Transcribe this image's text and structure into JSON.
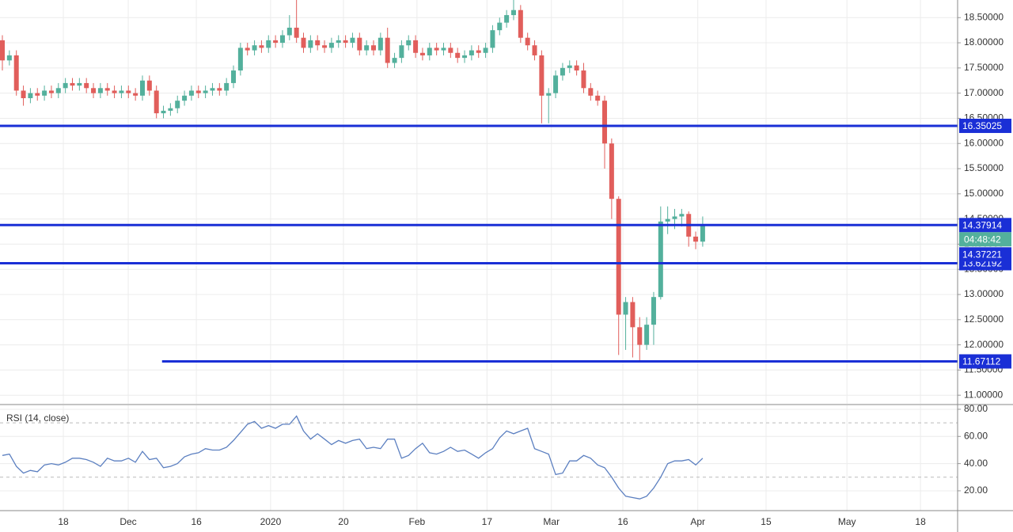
{
  "chart_data": [
    {
      "type": "candlestick",
      "up_color": "#53b09c",
      "down_color": "#e15e5b",
      "grid": true,
      "xlim": [
        -0.34,
        136.4
      ],
      "ylim": [
        10.83,
        18.85
      ],
      "yticks": [
        {
          "value": 11.0,
          "label": "11.00000"
        },
        {
          "value": 11.5,
          "label": "11.50000"
        },
        {
          "value": 12.0,
          "label": "12.00000"
        },
        {
          "value": 12.5,
          "label": "12.50000"
        },
        {
          "value": 13.0,
          "label": "13.00000"
        },
        {
          "value": 13.5,
          "label": "13.50000"
        },
        {
          "value": 14.0,
          "label": "14.00000"
        },
        {
          "value": 14.5,
          "label": "14.50000"
        },
        {
          "value": 15.0,
          "label": "15.00000"
        },
        {
          "value": 15.5,
          "label": "15.50000"
        },
        {
          "value": 16.0,
          "label": "16.00000"
        },
        {
          "value": 16.5,
          "label": "16.50000"
        },
        {
          "value": 17.0,
          "label": "17.00000"
        },
        {
          "value": 17.5,
          "label": "17.50000"
        },
        {
          "value": 18.0,
          "label": "18.00000"
        },
        {
          "value": 18.5,
          "label": "18.50000"
        }
      ],
      "open": [
        18.05,
        17.65,
        17.75,
        17.05,
        16.9,
        17.0,
        16.95,
        17.05,
        17.0,
        17.1,
        17.2,
        17.15,
        17.2,
        17.1,
        17.0,
        17.1,
        17.05,
        17.0,
        17.05,
        17.0,
        16.95,
        17.25,
        17.05,
        16.6,
        16.65,
        16.7,
        16.85,
        16.95,
        17.05,
        17.0,
        17.05,
        17.1,
        17.05,
        17.2,
        17.45,
        17.9,
        17.85,
        17.95,
        17.9,
        18.05,
        18.0,
        18.15,
        18.3,
        18.1,
        17.9,
        18.05,
        17.95,
        17.9,
        18.0,
        18.05,
        18.0,
        18.1,
        17.85,
        17.95,
        17.85,
        18.1,
        17.6,
        17.7,
        17.95,
        18.05,
        17.8,
        17.75,
        17.9,
        17.85,
        17.9,
        17.8,
        17.7,
        17.75,
        17.85,
        17.8,
        17.9,
        18.25,
        18.4,
        18.55,
        18.65,
        18.1,
        17.95,
        17.75,
        16.95,
        17.0,
        17.35,
        17.5,
        17.55,
        17.45,
        17.1,
        16.95,
        16.85,
        16.0,
        14.9,
        12.6,
        12.85,
        12.35,
        12.0,
        12.4,
        12.95,
        14.45,
        14.5,
        14.55,
        14.6,
        14.15,
        14.05
      ],
      "high": [
        18.15,
        17.85,
        17.85,
        17.15,
        17.1,
        17.1,
        17.15,
        17.15,
        17.2,
        17.3,
        17.3,
        17.3,
        17.3,
        17.2,
        17.2,
        17.2,
        17.15,
        17.15,
        17.15,
        17.1,
        17.35,
        17.35,
        17.15,
        16.75,
        16.8,
        16.95,
        17.05,
        17.15,
        17.15,
        17.15,
        17.2,
        17.2,
        17.3,
        17.55,
        18.0,
        18.0,
        18.05,
        18.05,
        18.15,
        18.15,
        18.25,
        18.55,
        18.85,
        18.2,
        18.15,
        18.15,
        18.05,
        18.1,
        18.15,
        18.15,
        18.2,
        18.2,
        18.05,
        18.05,
        18.2,
        18.3,
        17.8,
        18.05,
        18.15,
        18.15,
        17.9,
        18.0,
        18.0,
        18.0,
        18.0,
        17.9,
        17.85,
        17.95,
        17.95,
        18.0,
        18.35,
        18.5,
        18.65,
        18.85,
        18.75,
        18.2,
        18.05,
        17.85,
        17.1,
        17.45,
        17.6,
        17.65,
        17.65,
        17.6,
        17.2,
        17.05,
        16.95,
        16.1,
        14.95,
        12.95,
        12.95,
        12.55,
        12.55,
        13.05,
        14.75,
        14.75,
        14.7,
        14.7,
        14.65,
        14.25,
        14.55
      ],
      "low": [
        17.45,
        17.55,
        16.95,
        16.75,
        16.8,
        16.85,
        16.85,
        16.9,
        16.9,
        17.0,
        17.05,
        17.05,
        17.0,
        16.9,
        16.9,
        16.95,
        16.9,
        16.9,
        16.9,
        16.85,
        16.85,
        16.95,
        16.5,
        16.5,
        16.55,
        16.6,
        16.75,
        16.85,
        16.9,
        16.9,
        16.95,
        16.95,
        16.95,
        17.1,
        17.35,
        17.75,
        17.75,
        17.8,
        17.8,
        17.9,
        17.9,
        18.05,
        18.0,
        17.8,
        17.8,
        17.85,
        17.8,
        17.8,
        17.9,
        17.9,
        17.9,
        17.75,
        17.75,
        17.75,
        17.75,
        17.5,
        17.5,
        17.6,
        17.85,
        17.7,
        17.65,
        17.65,
        17.75,
        17.75,
        17.7,
        17.6,
        17.6,
        17.65,
        17.7,
        17.7,
        17.8,
        18.15,
        18.3,
        18.45,
        18.0,
        17.85,
        17.65,
        16.4,
        16.4,
        16.9,
        17.25,
        17.4,
        17.35,
        17.0,
        16.85,
        16.75,
        15.5,
        14.5,
        11.8,
        11.9,
        11.75,
        11.67,
        11.9,
        12.0,
        12.9,
        14.2,
        14.3,
        14.35,
        13.95,
        13.9,
        13.95
      ],
      "close": [
        17.65,
        17.75,
        17.05,
        16.9,
        17.0,
        16.95,
        17.05,
        17.0,
        17.1,
        17.2,
        17.15,
        17.2,
        17.1,
        17.0,
        17.1,
        17.05,
        17.0,
        17.05,
        17.0,
        16.95,
        17.25,
        17.05,
        16.6,
        16.65,
        16.7,
        16.85,
        16.95,
        17.05,
        17.0,
        17.05,
        17.1,
        17.05,
        17.2,
        17.45,
        17.9,
        17.85,
        17.95,
        17.9,
        18.05,
        18.0,
        18.15,
        18.3,
        18.1,
        17.9,
        18.05,
        17.95,
        17.9,
        18.0,
        18.05,
        18.0,
        18.1,
        17.85,
        17.95,
        17.85,
        18.1,
        17.6,
        17.7,
        17.95,
        18.05,
        17.8,
        17.75,
        17.9,
        17.85,
        17.9,
        17.8,
        17.7,
        17.75,
        17.85,
        17.8,
        17.9,
        18.25,
        18.4,
        18.55,
        18.65,
        18.1,
        17.95,
        17.75,
        16.95,
        17.0,
        17.35,
        17.5,
        17.55,
        17.45,
        17.1,
        16.95,
        16.85,
        16.0,
        14.9,
        12.6,
        12.85,
        12.35,
        12.0,
        12.4,
        12.95,
        14.45,
        14.5,
        14.55,
        14.6,
        14.15,
        14.05,
        14.38
      ],
      "levels": [
        {
          "value": 16.35025,
          "color": "#1a2fd6"
        },
        {
          "value": 14.37914,
          "color": "#1a2fd6"
        },
        {
          "value": 13.62192,
          "color": "#1a2fd6"
        },
        {
          "value": 11.67112,
          "color": "#1a2fd6",
          "x_start": 22.8
        }
      ],
      "countdown": "04:48:42",
      "countdown_color": "#53b09c",
      "last_price": 14.37221,
      "last_price_color": "#1a2fd6"
    },
    {
      "type": "line",
      "title": "RSI (14, close)",
      "color": "#5b7fc0",
      "xlim": [
        -0.34,
        136.4
      ],
      "ylim": [
        5.4,
        82.9
      ],
      "yticks": [
        {
          "value": 20,
          "label": "20.00"
        },
        {
          "value": 40,
          "label": "40.00"
        },
        {
          "value": 60,
          "label": "60.00"
        },
        {
          "value": 80,
          "label": "80.00"
        }
      ],
      "band_lines": [
        30,
        70
      ],
      "xticks": [
        {
          "value": 8.7,
          "label": "18"
        },
        {
          "value": 17.97,
          "label": "Dec"
        },
        {
          "value": 27.7,
          "label": "16"
        },
        {
          "value": 38.3,
          "label": "2020"
        },
        {
          "value": 48.7,
          "label": "20"
        },
        {
          "value": 59.2,
          "label": "Feb"
        },
        {
          "value": 69.2,
          "label": "17"
        },
        {
          "value": 78.4,
          "label": "Mar"
        },
        {
          "value": 88.6,
          "label": "16"
        },
        {
          "value": 99.3,
          "label": "Apr"
        },
        {
          "value": 109.05,
          "label": "15"
        },
        {
          "value": 120.6,
          "label": "May"
        },
        {
          "value": 131.1,
          "label": "18"
        }
      ],
      "values": [
        46,
        47,
        38,
        33,
        35,
        34,
        39,
        40,
        39,
        41,
        44,
        44,
        43,
        41,
        38,
        44,
        42,
        42,
        44,
        41,
        49,
        43,
        44,
        37,
        38,
        40,
        45,
        47,
        48,
        51,
        50,
        50,
        52,
        57,
        63,
        69,
        71,
        66,
        68,
        66,
        69,
        69,
        75,
        64,
        58,
        62,
        58,
        54,
        57,
        55,
        57,
        58,
        51,
        52,
        51,
        58,
        58,
        44,
        46,
        51,
        55,
        48,
        47,
        49,
        52,
        49,
        50,
        47,
        44,
        48,
        51,
        59,
        64,
        62,
        64,
        66,
        51,
        49,
        47,
        32,
        33,
        42,
        42,
        46,
        44,
        39,
        37,
        30,
        22,
        16,
        15,
        14,
        16,
        22,
        30,
        40,
        42,
        42,
        43,
        39,
        44
      ]
    }
  ]
}
